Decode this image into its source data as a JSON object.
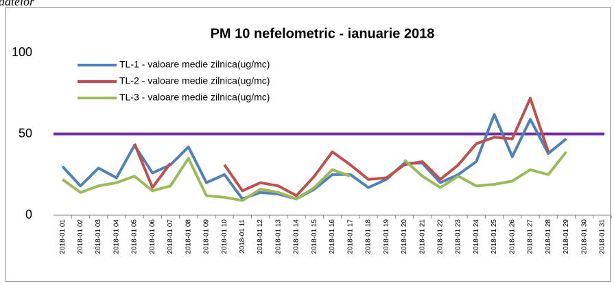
{
  "header_text": "datelor",
  "chart_data": {
    "type": "line",
    "title": "PM 10 nefelometric - ianuarie 2018",
    "categories": [
      "2018-01 01",
      "2018-01 02",
      "2018-01 03",
      "2018-01 04",
      "2018-01 05",
      "2018-01 06",
      "2018-01 07",
      "2018-01 08",
      "2018-01 09",
      "2018-01 10",
      "2018-01 11",
      "2018-01 12",
      "2018-01 13",
      "2018-01 14",
      "2018-01 15",
      "2018-01 16",
      "2018-01 17",
      "2018-01 18",
      "2018-01 19",
      "2018-01 20",
      "2018-01 21",
      "2018-01 22",
      "2018-01 23",
      "2018-01 24",
      "2018-01 25",
      "2018-01 26",
      "2018-01 27",
      "2018-01 28",
      "2018-01 29",
      "2018-01 30",
      "2018-01 31"
    ],
    "series": [
      {
        "name": "TL-1 - valoare medie zilnica(ug/mc)",
        "color": "#4f81bd",
        "values": [
          30,
          18,
          29,
          23,
          43,
          26,
          31,
          42,
          20,
          25,
          10,
          14,
          13,
          10,
          16,
          25,
          25,
          17,
          22,
          32,
          32,
          20,
          25,
          33,
          62,
          36,
          59,
          38,
          47,
          null,
          null
        ]
      },
      {
        "name": "TL-2 - valoare medie zilnica(ug/mc)",
        "color": "#c0504d",
        "values": [
          null,
          null,
          null,
          null,
          44,
          17,
          32,
          null,
          null,
          31,
          15,
          20,
          18,
          12,
          24,
          39,
          31,
          22,
          23,
          31,
          33,
          22,
          31,
          44,
          48,
          47,
          72,
          39,
          null,
          null,
          null
        ]
      },
      {
        "name": "TL-3 - valoare medie zilnica(ug/mc)",
        "color": "#9bbb59",
        "values": [
          22,
          14,
          18,
          20,
          24,
          15,
          18,
          35,
          12,
          11,
          9,
          16,
          14,
          10,
          17,
          28,
          24,
          null,
          null,
          34,
          24,
          17,
          24,
          18,
          19,
          21,
          28,
          25,
          39,
          null,
          null
        ]
      }
    ],
    "reference_line": {
      "value": 50,
      "color": "#7030a0"
    },
    "ylim": [
      0,
      100
    ],
    "yticks": [
      0,
      50,
      100
    ],
    "grid": false,
    "legend": "top-left"
  }
}
